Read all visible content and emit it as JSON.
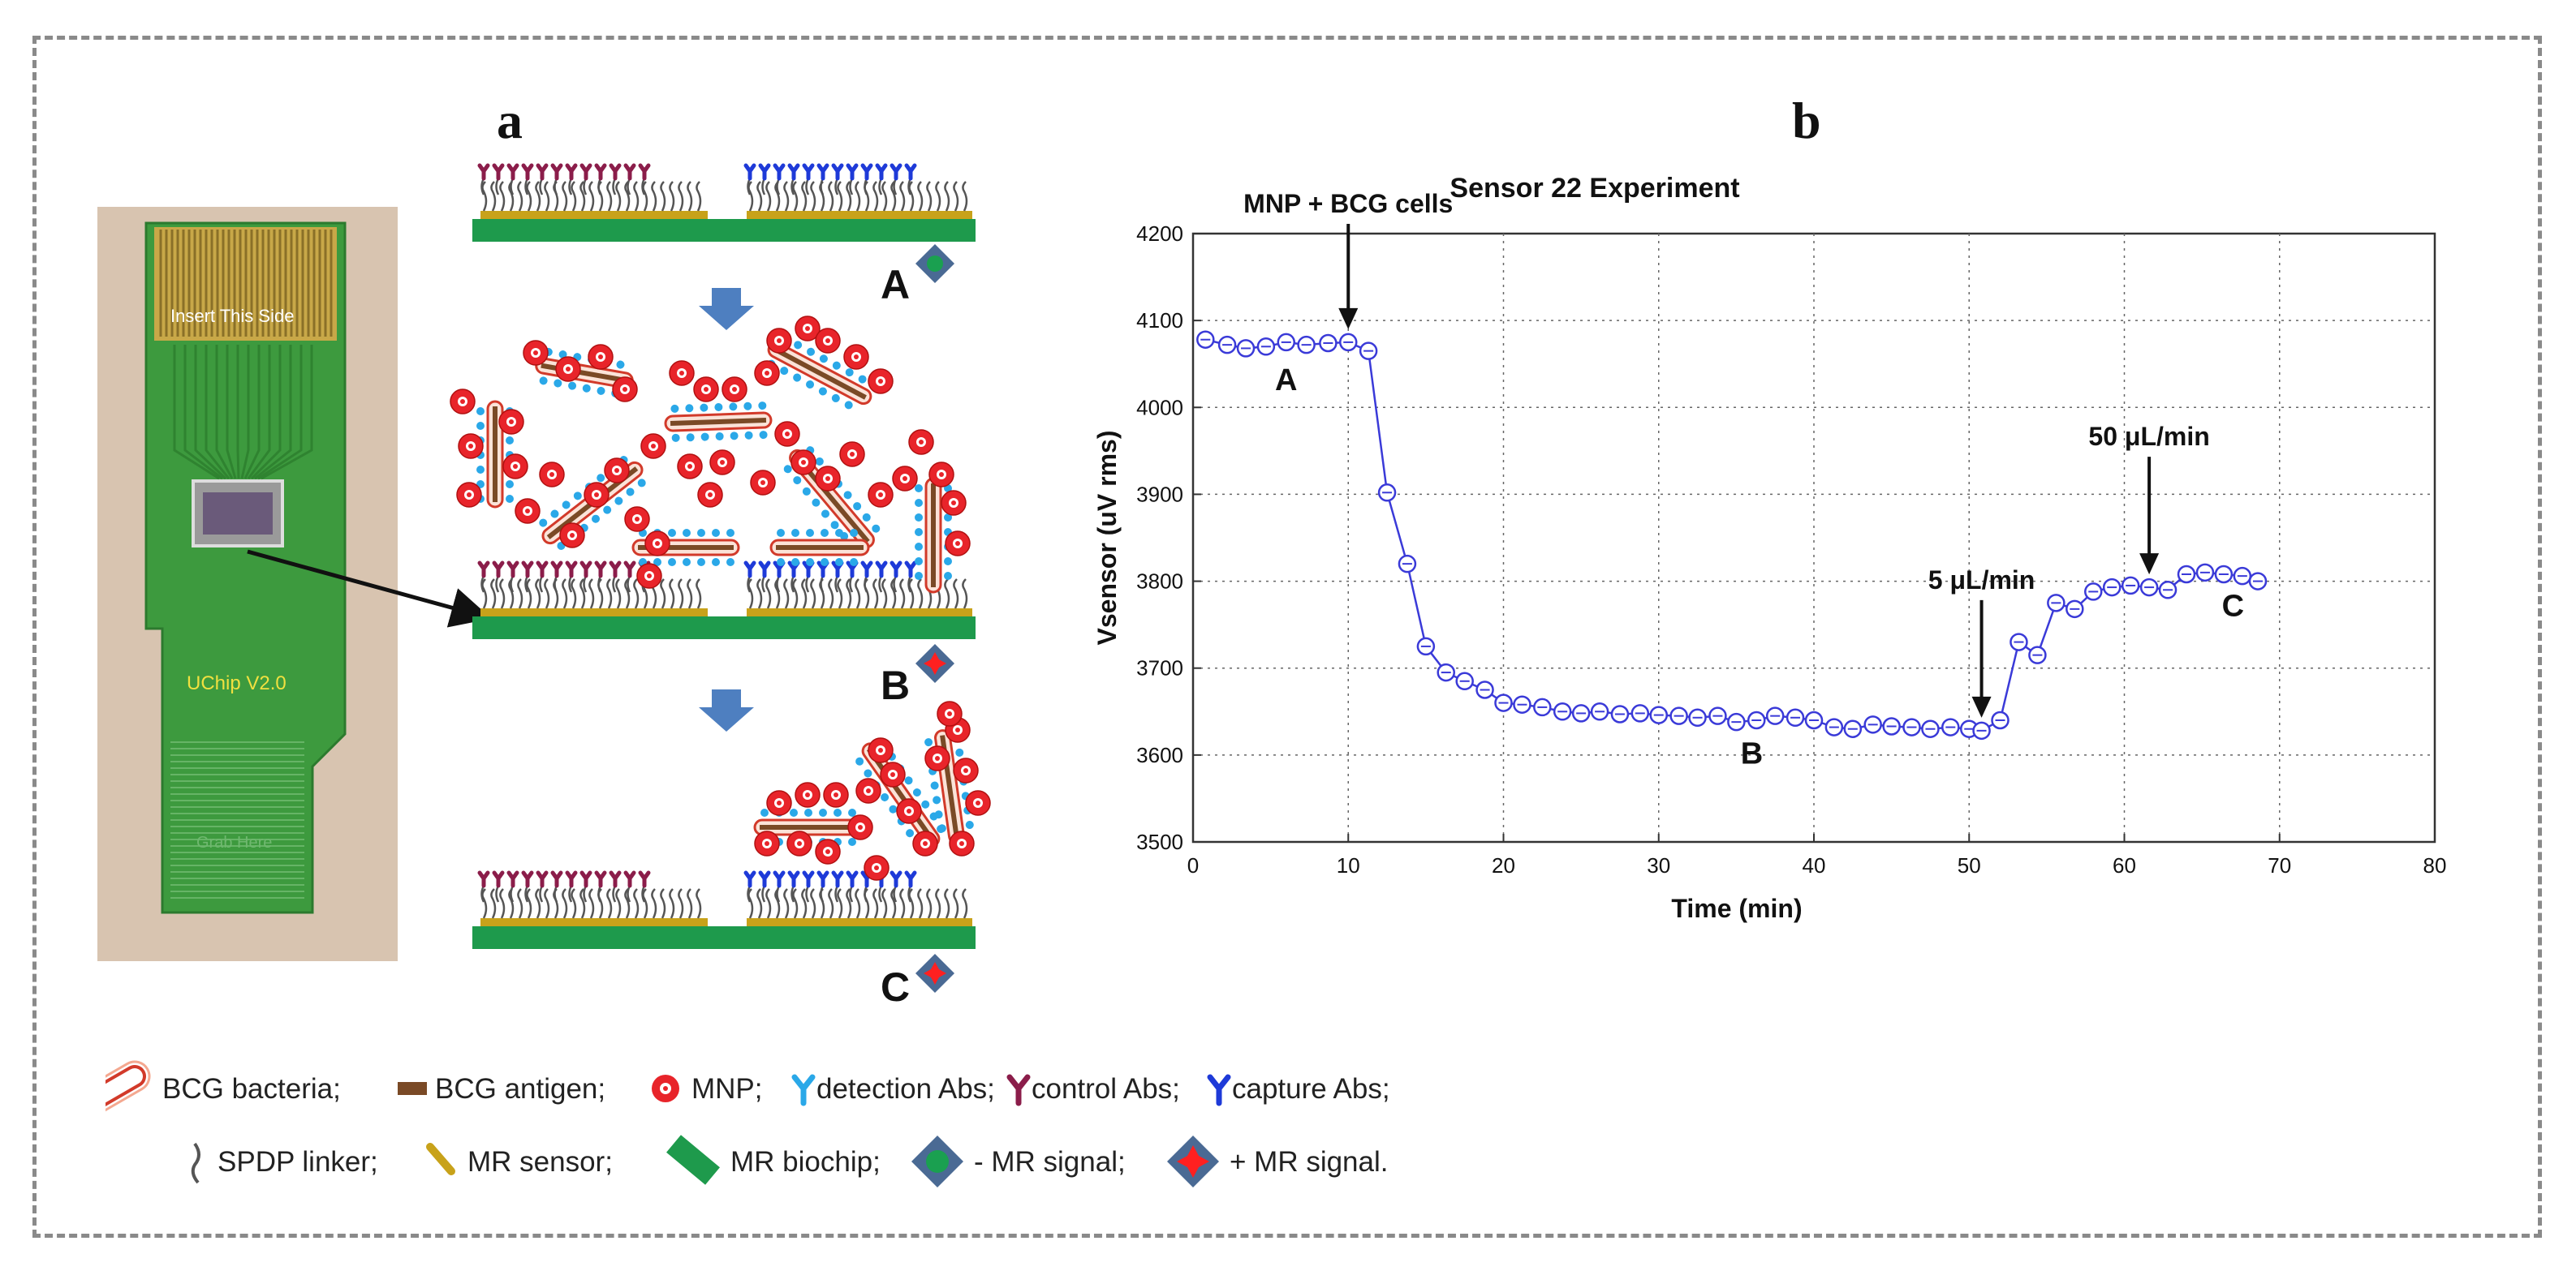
{
  "panel_labels": {
    "a": "a",
    "b": "b"
  },
  "photo": {
    "chip_top_text": "Insert This Side",
    "chip_mid_text": "UChip V2.0",
    "chip_bottom_text": "Grab Here"
  },
  "schematic": {
    "stage_labels": [
      "A",
      "B",
      "C"
    ]
  },
  "chart_data": {
    "type": "line",
    "title": "Sensor 22 Experiment",
    "xlabel": "Time (min)",
    "ylabel": "Vsensor (uV rms)",
    "xlim": [
      0,
      80
    ],
    "ylim": [
      3500,
      4200
    ],
    "xticks": [
      0,
      10,
      20,
      30,
      40,
      50,
      60,
      70,
      80
    ],
    "yticks": [
      3500,
      3600,
      3700,
      3800,
      3900,
      4000,
      4100,
      4200
    ],
    "grid": true,
    "series": [
      {
        "name": "Sensor 22",
        "color": "#3a3ad8",
        "x": [
          0.8,
          2.2,
          3.4,
          4.7,
          6.0,
          7.3,
          8.7,
          10.0,
          11.3,
          12.5,
          13.8,
          15.0,
          16.3,
          17.5,
          18.8,
          20.0,
          21.2,
          22.5,
          23.8,
          25.0,
          26.2,
          27.5,
          28.8,
          30.0,
          31.3,
          32.5,
          33.8,
          35.0,
          36.3,
          37.5,
          38.8,
          40.0,
          41.3,
          42.5,
          43.8,
          45.0,
          46.3,
          47.5,
          48.8,
          50.0,
          50.8,
          52.0,
          53.2,
          54.4,
          55.6,
          56.8,
          58.0,
          59.2,
          60.4,
          61.6,
          62.8,
          64.0,
          65.2,
          66.4,
          67.6,
          68.6
        ],
        "values": [
          4078,
          4072,
          4068,
          4070,
          4075,
          4072,
          4074,
          4075,
          4065,
          3902,
          3820,
          3725,
          3695,
          3685,
          3675,
          3660,
          3658,
          3655,
          3650,
          3648,
          3650,
          3647,
          3648,
          3646,
          3645,
          3643,
          3645,
          3638,
          3640,
          3645,
          3643,
          3640,
          3632,
          3630,
          3635,
          3633,
          3632,
          3630,
          3632,
          3630,
          3628,
          3640,
          3730,
          3715,
          3775,
          3768,
          3788,
          3793,
          3795,
          3793,
          3790,
          3808,
          3810,
          3808,
          3806,
          3800
        ]
      }
    ],
    "annotations": [
      {
        "text": "MNP + BCG cells",
        "x": 10,
        "y": 4075,
        "arrow": true
      },
      {
        "text": "5 μL/min",
        "x": 50.8,
        "y": 3628,
        "arrow": true
      },
      {
        "text": "50 μL/min",
        "x": 61.6,
        "y": 3793,
        "arrow": true
      },
      {
        "text": "A",
        "x": 6,
        "y": 4020,
        "arrow": false
      },
      {
        "text": "B",
        "x": 36,
        "y": 3590,
        "arrow": false
      },
      {
        "text": "C",
        "x": 67,
        "y": 3760,
        "arrow": false
      }
    ]
  },
  "legend": {
    "row1": [
      "BCG bacteria;",
      "BCG antigen;",
      "MNP;",
      "detection Abs;",
      "control Abs;",
      "capture Abs;"
    ],
    "row2": [
      "SPDP linker;",
      "MR sensor;",
      "MR biochip;",
      "- MR signal;",
      "+ MR signal."
    ]
  },
  "colors": {
    "chip_green": "#3d9a3e",
    "biochip_green": "#1e9a4c",
    "sensor_gold": "#c8a21a",
    "mnp_red": "#e8242a",
    "bacteria_brown": "#7a4a26",
    "detection_blue": "#2aa8e8",
    "control_maroon": "#8b1d4a",
    "capture_blue": "#1e3ad8",
    "arrow_blue": "#4e7fc0",
    "series_blue": "#3a3ad8"
  }
}
